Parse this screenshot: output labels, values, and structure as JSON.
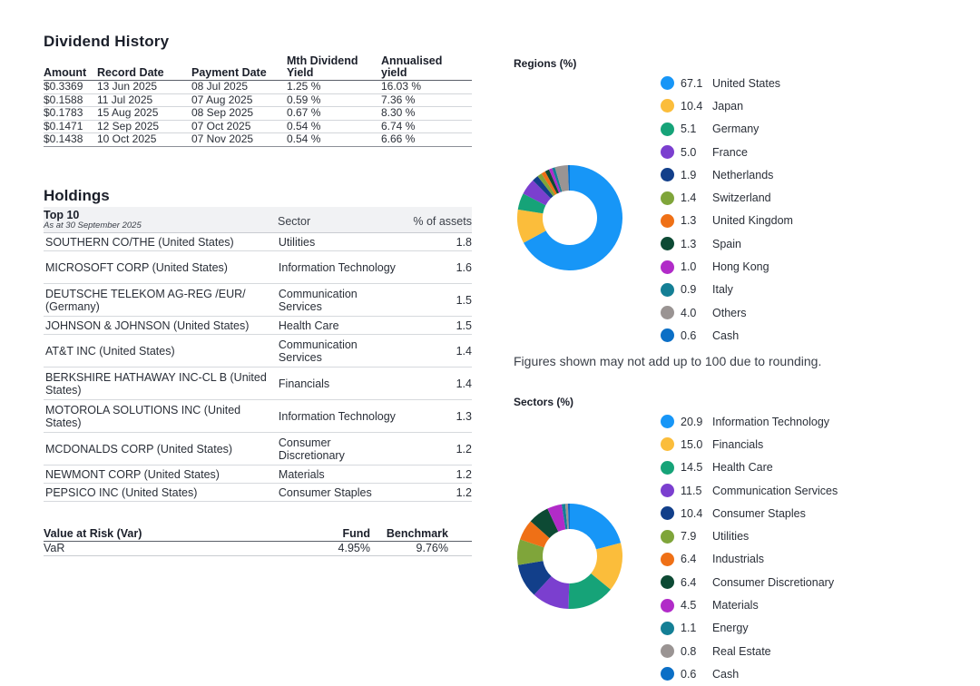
{
  "dividend": {
    "title": "Dividend History",
    "headers": {
      "amount": "Amount",
      "record": "Record Date",
      "payment": "Payment Date",
      "mth_yield_1": "Mth Dividend",
      "mth_yield_2": "Yield",
      "ann_yield_1": "Annualised",
      "ann_yield_2": "yield"
    },
    "rows": [
      {
        "amount": "$0.3369",
        "record": "13 Jun 2025",
        "payment": "08 Jul 2025",
        "mth": "1.25 %",
        "ann": "16.03 %"
      },
      {
        "amount": "$0.1588",
        "record": "11 Jul 2025",
        "payment": "07 Aug 2025",
        "mth": "0.59 %",
        "ann": "7.36 %"
      },
      {
        "amount": "$0.1783",
        "record": "15 Aug 2025",
        "payment": "08 Sep 2025",
        "mth": "0.67 %",
        "ann": "8.30 %"
      },
      {
        "amount": "$0.1471",
        "record": "12 Sep 2025",
        "payment": "07 Oct 2025",
        "mth": "0.54 %",
        "ann": "6.74 %"
      },
      {
        "amount": "$0.1438",
        "record": "10 Oct 2025",
        "payment": "07 Nov 2025",
        "mth": "0.54 %",
        "ann": "6.66 %"
      }
    ]
  },
  "holdings": {
    "title": "Holdings",
    "top_label": "Top 10",
    "as_at": "As at 30 September 2025",
    "sector_header": "Sector",
    "assets_header": "% of assets",
    "rows": [
      {
        "name": "SOUTHERN CO/THE (United States)",
        "sector": "Utilities",
        "pct": "1.8"
      },
      {
        "name": "MICROSOFT CORP (United States)",
        "sector": "Information Technology",
        "pct": "1.6"
      },
      {
        "name": "DEUTSCHE TELEKOM AG-REG /EUR/ (Germany)",
        "sector": "Communication Services",
        "pct": "1.5"
      },
      {
        "name": "JOHNSON & JOHNSON (United States)",
        "sector": "Health Care",
        "pct": "1.5"
      },
      {
        "name": "AT&T INC (United States)",
        "sector": "Communication Services",
        "pct": "1.4"
      },
      {
        "name": "BERKSHIRE HATHAWAY INC-CL B (United States)",
        "sector": "Financials",
        "pct": "1.4"
      },
      {
        "name": "MOTOROLA SOLUTIONS INC (United States)",
        "sector": "Information Technology",
        "pct": "1.3"
      },
      {
        "name": "MCDONALDS CORP (United States)",
        "sector": "Consumer Discretionary",
        "pct": "1.2"
      },
      {
        "name": "NEWMONT CORP (United States)",
        "sector": "Materials",
        "pct": "1.2"
      },
      {
        "name": "PEPSICO INC (United States)",
        "sector": "Consumer Staples",
        "pct": "1.2"
      }
    ]
  },
  "var": {
    "header_label": "Value at Risk (Var)",
    "fund_header": "Fund",
    "benchmark_header": "Benchmark",
    "row_label": "VaR",
    "fund": "4.95%",
    "benchmark": "9.76%"
  },
  "note": "Figures shown may not add up to 100 due to rounding.",
  "chart_data": [
    {
      "type": "pie",
      "title": "Regions (%)",
      "labels": [
        "United States",
        "Japan",
        "Germany",
        "France",
        "Netherlands",
        "Switzerland",
        "United Kingdom",
        "Spain",
        "Hong Kong",
        "Italy",
        "Others",
        "Cash"
      ],
      "values": [
        67.1,
        10.4,
        5.1,
        5.0,
        1.9,
        1.4,
        1.3,
        1.3,
        1.0,
        0.9,
        4.0,
        0.6
      ],
      "value_labels": [
        "67.1",
        "10.4",
        "5.1",
        "5.0",
        "1.9",
        "1.4",
        "1.3",
        "1.3",
        "1.0",
        "0.9",
        "4.0",
        "0.6"
      ],
      "colors": [
        "#1796f7",
        "#fbbd3b",
        "#16a378",
        "#7b3fcf",
        "#123f8a",
        "#7fa53a",
        "#ef7016",
        "#0d4a34",
        "#b12bc8",
        "#147f95",
        "#9a9493",
        "#0b6fc6"
      ],
      "donut": true,
      "legend": "right"
    },
    {
      "type": "pie",
      "title": "Sectors (%)",
      "labels": [
        "Information Technology",
        "Financials",
        "Health Care",
        "Communication Services",
        "Consumer Staples",
        "Utilities",
        "Industrials",
        "Consumer Discretionary",
        "Materials",
        "Energy",
        "Real Estate",
        "Cash"
      ],
      "values": [
        20.9,
        15.0,
        14.5,
        11.5,
        10.4,
        7.9,
        6.4,
        6.4,
        4.5,
        1.1,
        0.8,
        0.6
      ],
      "value_labels": [
        "20.9",
        "15.0",
        "14.5",
        "11.5",
        "10.4",
        "7.9",
        "6.4",
        "6.4",
        "4.5",
        "1.1",
        "0.8",
        "0.6"
      ],
      "colors": [
        "#1796f7",
        "#fbbd3b",
        "#16a378",
        "#7b3fcf",
        "#123f8a",
        "#7fa53a",
        "#ef7016",
        "#0d4a34",
        "#b12bc8",
        "#147f95",
        "#9a9493",
        "#0b6fc6"
      ],
      "donut": true,
      "legend": "right"
    }
  ]
}
